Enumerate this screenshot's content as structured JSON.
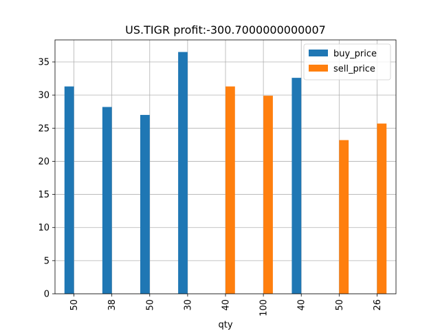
{
  "chart_data": {
    "type": "bar",
    "title": "US.TIGR  profit:-300.7000000000007",
    "xlabel": "qty",
    "ylabel": "",
    "categories": [
      "50",
      "38",
      "50",
      "30",
      "40",
      "100",
      "40",
      "50",
      "26"
    ],
    "series": [
      {
        "name": "buy_price",
        "color": "#1f77b4",
        "values": [
          31.3,
          28.2,
          27.0,
          36.5,
          null,
          null,
          32.6,
          null,
          null
        ]
      },
      {
        "name": "sell_price",
        "color": "#ff7f0e",
        "values": [
          null,
          null,
          null,
          null,
          31.3,
          29.9,
          null,
          23.2,
          25.7
        ]
      }
    ],
    "ylim": [
      0,
      38.325
    ],
    "yticks": [
      0,
      5,
      10,
      15,
      20,
      25,
      30,
      35
    ],
    "grid": true,
    "legend": "top-right"
  }
}
